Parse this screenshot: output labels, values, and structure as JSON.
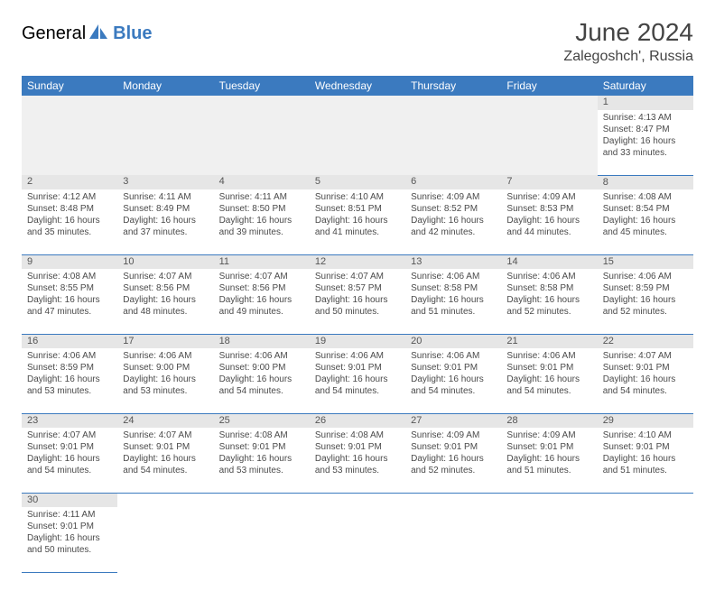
{
  "brand": {
    "name1": "General",
    "name2": "Blue",
    "color1": "#555555",
    "color2": "#3b7abf"
  },
  "title": "June 2024",
  "location": "Zalegoshch', Russia",
  "weekdays": [
    "Sunday",
    "Monday",
    "Tuesday",
    "Wednesday",
    "Thursday",
    "Friday",
    "Saturday"
  ],
  "colors": {
    "header_bg": "#3b7abf",
    "header_fg": "#ffffff",
    "daynum_bg": "#e6e6e6",
    "border": "#3b7abf"
  },
  "weeks": [
    [
      null,
      null,
      null,
      null,
      null,
      null,
      {
        "day": "1",
        "sunrise": "4:13 AM",
        "sunset": "8:47 PM",
        "daylight_h": "16",
        "daylight_m": "33"
      }
    ],
    [
      {
        "day": "2",
        "sunrise": "4:12 AM",
        "sunset": "8:48 PM",
        "daylight_h": "16",
        "daylight_m": "35"
      },
      {
        "day": "3",
        "sunrise": "4:11 AM",
        "sunset": "8:49 PM",
        "daylight_h": "16",
        "daylight_m": "37"
      },
      {
        "day": "4",
        "sunrise": "4:11 AM",
        "sunset": "8:50 PM",
        "daylight_h": "16",
        "daylight_m": "39"
      },
      {
        "day": "5",
        "sunrise": "4:10 AM",
        "sunset": "8:51 PM",
        "daylight_h": "16",
        "daylight_m": "41"
      },
      {
        "day": "6",
        "sunrise": "4:09 AM",
        "sunset": "8:52 PM",
        "daylight_h": "16",
        "daylight_m": "42"
      },
      {
        "day": "7",
        "sunrise": "4:09 AM",
        "sunset": "8:53 PM",
        "daylight_h": "16",
        "daylight_m": "44"
      },
      {
        "day": "8",
        "sunrise": "4:08 AM",
        "sunset": "8:54 PM",
        "daylight_h": "16",
        "daylight_m": "45"
      }
    ],
    [
      {
        "day": "9",
        "sunrise": "4:08 AM",
        "sunset": "8:55 PM",
        "daylight_h": "16",
        "daylight_m": "47"
      },
      {
        "day": "10",
        "sunrise": "4:07 AM",
        "sunset": "8:56 PM",
        "daylight_h": "16",
        "daylight_m": "48"
      },
      {
        "day": "11",
        "sunrise": "4:07 AM",
        "sunset": "8:56 PM",
        "daylight_h": "16",
        "daylight_m": "49"
      },
      {
        "day": "12",
        "sunrise": "4:07 AM",
        "sunset": "8:57 PM",
        "daylight_h": "16",
        "daylight_m": "50"
      },
      {
        "day": "13",
        "sunrise": "4:06 AM",
        "sunset": "8:58 PM",
        "daylight_h": "16",
        "daylight_m": "51"
      },
      {
        "day": "14",
        "sunrise": "4:06 AM",
        "sunset": "8:58 PM",
        "daylight_h": "16",
        "daylight_m": "52"
      },
      {
        "day": "15",
        "sunrise": "4:06 AM",
        "sunset": "8:59 PM",
        "daylight_h": "16",
        "daylight_m": "52"
      }
    ],
    [
      {
        "day": "16",
        "sunrise": "4:06 AM",
        "sunset": "8:59 PM",
        "daylight_h": "16",
        "daylight_m": "53"
      },
      {
        "day": "17",
        "sunrise": "4:06 AM",
        "sunset": "9:00 PM",
        "daylight_h": "16",
        "daylight_m": "53"
      },
      {
        "day": "18",
        "sunrise": "4:06 AM",
        "sunset": "9:00 PM",
        "daylight_h": "16",
        "daylight_m": "54"
      },
      {
        "day": "19",
        "sunrise": "4:06 AM",
        "sunset": "9:01 PM",
        "daylight_h": "16",
        "daylight_m": "54"
      },
      {
        "day": "20",
        "sunrise": "4:06 AM",
        "sunset": "9:01 PM",
        "daylight_h": "16",
        "daylight_m": "54"
      },
      {
        "day": "21",
        "sunrise": "4:06 AM",
        "sunset": "9:01 PM",
        "daylight_h": "16",
        "daylight_m": "54"
      },
      {
        "day": "22",
        "sunrise": "4:07 AM",
        "sunset": "9:01 PM",
        "daylight_h": "16",
        "daylight_m": "54"
      }
    ],
    [
      {
        "day": "23",
        "sunrise": "4:07 AM",
        "sunset": "9:01 PM",
        "daylight_h": "16",
        "daylight_m": "54"
      },
      {
        "day": "24",
        "sunrise": "4:07 AM",
        "sunset": "9:01 PM",
        "daylight_h": "16",
        "daylight_m": "54"
      },
      {
        "day": "25",
        "sunrise": "4:08 AM",
        "sunset": "9:01 PM",
        "daylight_h": "16",
        "daylight_m": "53"
      },
      {
        "day": "26",
        "sunrise": "4:08 AM",
        "sunset": "9:01 PM",
        "daylight_h": "16",
        "daylight_m": "53"
      },
      {
        "day": "27",
        "sunrise": "4:09 AM",
        "sunset": "9:01 PM",
        "daylight_h": "16",
        "daylight_m": "52"
      },
      {
        "day": "28",
        "sunrise": "4:09 AM",
        "sunset": "9:01 PM",
        "daylight_h": "16",
        "daylight_m": "51"
      },
      {
        "day": "29",
        "sunrise": "4:10 AM",
        "sunset": "9:01 PM",
        "daylight_h": "16",
        "daylight_m": "51"
      }
    ],
    [
      {
        "day": "30",
        "sunrise": "4:11 AM",
        "sunset": "9:01 PM",
        "daylight_h": "16",
        "daylight_m": "50"
      },
      null,
      null,
      null,
      null,
      null,
      null
    ]
  ],
  "labels": {
    "sunrise": "Sunrise:",
    "sunset": "Sunset:",
    "daylight_prefix": "Daylight:",
    "hours_word": "hours",
    "and_word": "and",
    "minutes_word": "minutes."
  }
}
